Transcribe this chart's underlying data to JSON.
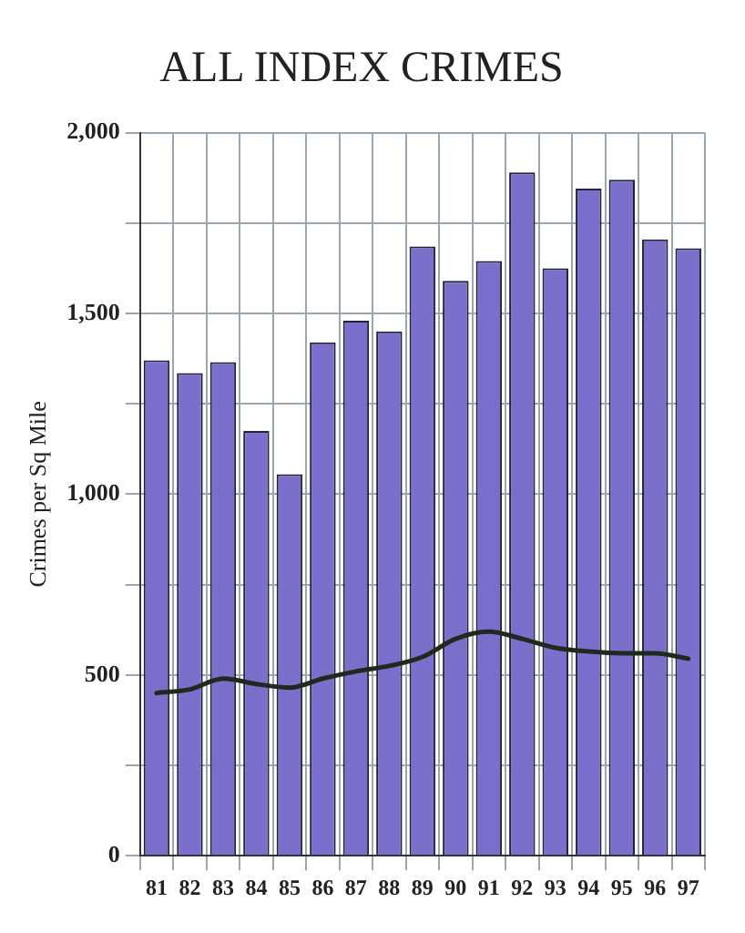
{
  "chart_data": {
    "type": "bar",
    "title": "ALL INDEX CRIMES",
    "ylabel": "Crimes per Sq Mile",
    "categories": [
      "81",
      "82",
      "83",
      "84",
      "85",
      "86",
      "87",
      "88",
      "89",
      "90",
      "91",
      "92",
      "93",
      "94",
      "95",
      "96",
      "97"
    ],
    "series": [
      {
        "color": "#7a70cc",
        "values": [
          1370,
          1335,
          1365,
          1175,
          1055,
          1420,
          1480,
          1450,
          1685,
          1590,
          1645,
          1890,
          1625,
          1845,
          1870,
          1705,
          1680
        ]
      },
      {
        "type": "line",
        "color": "#1e2a1e",
        "values": [
          450,
          460,
          490,
          475,
          465,
          490,
          510,
          525,
          550,
          600,
          620,
          600,
          575,
          565,
          560,
          560,
          545
        ]
      }
    ],
    "ylim": [
      0,
      2000
    ],
    "yticks": [
      0,
      {
        "value": 250,
        "label": null
      },
      500,
      {
        "value": 750,
        "label": null
      },
      {
        "value": 1000,
        "label": "1,000"
      },
      {
        "value": 1250,
        "label": null
      },
      {
        "value": 1500,
        "label": "1,500"
      },
      {
        "value": 1750,
        "label": null
      },
      {
        "value": 2000,
        "label": "2,000"
      }
    ],
    "grid": true,
    "marker": "none",
    "line_style": "solid"
  }
}
